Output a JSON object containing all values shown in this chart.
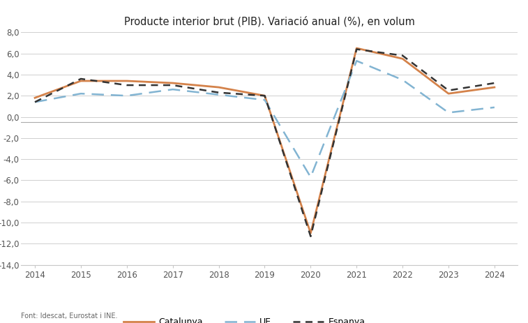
{
  "title": "Producte interior brut (PIB). Variació anual (%), en volum",
  "years": [
    2014,
    2015,
    2016,
    2017,
    2018,
    2019,
    2020,
    2021,
    2022,
    2023,
    2024
  ],
  "catalunya": [
    1.8,
    3.4,
    3.4,
    3.2,
    2.8,
    2.0,
    -11.0,
    6.5,
    5.5,
    2.2,
    2.8
  ],
  "ue": [
    1.4,
    2.2,
    2.0,
    2.6,
    2.1,
    1.6,
    -5.7,
    5.3,
    3.5,
    0.4,
    0.9
  ],
  "espanya": [
    1.4,
    3.6,
    3.0,
    3.0,
    2.3,
    2.0,
    -11.3,
    6.4,
    5.8,
    2.5,
    3.2
  ],
  "ylim_min": -14,
  "ylim_max": 8,
  "yticks": [
    -14,
    -12,
    -10,
    -8,
    -6,
    -4,
    -2,
    0,
    2,
    4,
    6,
    8
  ],
  "color_catalunya": "#D4824A",
  "color_ue": "#82B4D2",
  "color_espanya": "#333333",
  "background_color": "#FFFFFF",
  "grid_color": "#C8C8C8",
  "hline_color": "#AAAAAA",
  "hline_y": -0.5,
  "footer": "Font: Idescat, Eurostat i INE.",
  "legend_labels": [
    "Catalunya",
    "UE",
    "Espanya"
  ],
  "title_fontsize": 10.5,
  "tick_fontsize": 8.5
}
